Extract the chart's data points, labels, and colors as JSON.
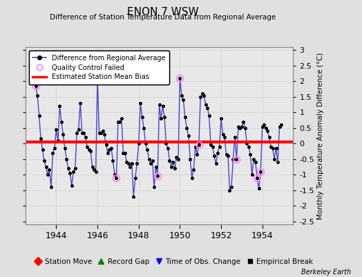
{
  "title": "ENON 7 WSW",
  "subtitle": "Difference of Station Temperature Data from Regional Average",
  "ylabel": "Monthly Temperature Anomaly Difference (°C)",
  "xlabel_ticks": [
    1944,
    1946,
    1948,
    1950,
    1952,
    1954
  ],
  "xlim": [
    1942.5,
    1955.5
  ],
  "ylim": [
    -2.6,
    3.1
  ],
  "yticks": [
    -2.5,
    -2,
    -1.5,
    -1,
    -0.5,
    0,
    0.5,
    1,
    1.5,
    2,
    2.5,
    3
  ],
  "ytick_labels": [
    "-2.5",
    "-2",
    "-1.5",
    "-1",
    "-0.5",
    "0",
    "0.5",
    "1",
    "1.5",
    "2",
    "2.5",
    "3"
  ],
  "bias_value": 0.05,
  "background_color": "#e0e0e0",
  "plot_bg_color": "#e8e8e8",
  "line_color": "#4444cc",
  "bias_color": "red",
  "marker_color": "black",
  "qc_fail_color": "#ff80ff",
  "watermark": "Berkeley Earth",
  "x_data": [
    1943.0,
    1943.083,
    1943.167,
    1943.25,
    1943.333,
    1943.417,
    1943.5,
    1943.583,
    1943.667,
    1943.75,
    1943.833,
    1943.917,
    1944.0,
    1944.083,
    1944.167,
    1944.25,
    1944.333,
    1944.417,
    1944.5,
    1944.583,
    1944.667,
    1944.75,
    1944.833,
    1944.917,
    1945.0,
    1945.083,
    1945.167,
    1945.25,
    1945.333,
    1945.417,
    1945.5,
    1945.583,
    1945.667,
    1945.75,
    1945.833,
    1945.917,
    1946.0,
    1946.083,
    1946.167,
    1946.25,
    1946.333,
    1946.417,
    1946.5,
    1946.583,
    1946.667,
    1946.75,
    1946.833,
    1946.917,
    1947.0,
    1947.083,
    1947.167,
    1947.25,
    1947.333,
    1947.417,
    1947.5,
    1947.583,
    1947.667,
    1947.75,
    1947.833,
    1947.917,
    1948.0,
    1948.083,
    1948.167,
    1948.25,
    1948.333,
    1948.417,
    1948.5,
    1948.583,
    1948.667,
    1948.75,
    1948.833,
    1948.917,
    1949.0,
    1949.083,
    1949.167,
    1949.25,
    1949.333,
    1949.417,
    1949.5,
    1949.583,
    1949.667,
    1949.75,
    1949.833,
    1949.917,
    1950.0,
    1950.083,
    1950.167,
    1950.25,
    1950.333,
    1950.417,
    1950.5,
    1950.583,
    1950.667,
    1950.75,
    1950.833,
    1950.917,
    1951.0,
    1951.083,
    1951.167,
    1951.25,
    1951.333,
    1951.417,
    1951.5,
    1951.583,
    1951.667,
    1951.75,
    1951.833,
    1951.917,
    1952.0,
    1952.083,
    1952.167,
    1952.25,
    1952.333,
    1952.417,
    1952.5,
    1952.583,
    1952.667,
    1952.75,
    1952.833,
    1952.917,
    1953.0,
    1953.083,
    1953.167,
    1953.25,
    1953.333,
    1953.417,
    1953.5,
    1953.583,
    1953.667,
    1953.75,
    1953.833,
    1953.917,
    1954.0,
    1954.083,
    1954.167,
    1954.25,
    1954.333,
    1954.417,
    1954.5,
    1954.583,
    1954.667,
    1954.75,
    1954.833,
    1954.917
  ],
  "y_data": [
    1.85,
    1.55,
    0.9,
    0.15,
    -0.2,
    -0.55,
    -0.75,
    -1.0,
    -0.85,
    -1.4,
    -0.3,
    -0.15,
    0.45,
    0.1,
    1.2,
    0.7,
    0.3,
    -0.15,
    -0.5,
    -0.8,
    -0.95,
    -1.35,
    -0.9,
    -0.8,
    0.35,
    0.45,
    1.3,
    0.35,
    0.35,
    0.2,
    -0.1,
    -0.2,
    -0.25,
    -0.75,
    -0.85,
    -0.9,
    2.1,
    0.35,
    0.35,
    0.4,
    0.3,
    -0.05,
    -0.3,
    -0.2,
    -0.15,
    -0.55,
    -1.0,
    -1.1,
    0.7,
    0.7,
    0.8,
    -0.3,
    -0.3,
    -0.6,
    -0.65,
    -0.75,
    -0.65,
    -1.7,
    -1.1,
    -0.65,
    0.0,
    1.3,
    0.85,
    0.5,
    0.0,
    -0.2,
    -0.5,
    -0.65,
    -0.55,
    -1.4,
    -0.75,
    -1.05,
    1.25,
    0.8,
    1.2,
    0.85,
    0.0,
    -0.15,
    -0.55,
    -0.75,
    -0.6,
    -0.8,
    -0.45,
    -0.5,
    2.1,
    1.55,
    1.4,
    0.85,
    0.5,
    0.25,
    -0.5,
    -1.1,
    -0.85,
    -0.1,
    -0.35,
    -0.05,
    1.5,
    1.6,
    1.55,
    1.25,
    1.15,
    0.9,
    -0.05,
    -0.1,
    -0.4,
    -0.65,
    -0.3,
    -0.1,
    0.8,
    0.3,
    0.2,
    -0.35,
    -0.4,
    -1.5,
    -1.4,
    -0.5,
    0.2,
    -0.5,
    0.55,
    0.5,
    0.55,
    0.7,
    0.5,
    0.0,
    -0.1,
    -0.35,
    -1.0,
    -0.5,
    -0.6,
    -1.1,
    -1.45,
    -0.9,
    0.55,
    0.6,
    0.5,
    0.4,
    0.2,
    -0.1,
    -0.15,
    -0.5,
    -0.15,
    -0.6,
    0.55,
    0.6
  ],
  "qc_fail_indices": [
    0,
    47,
    71,
    84,
    95,
    117,
    129,
    131
  ],
  "grid_color": "#cccccc",
  "grid_style": "--"
}
